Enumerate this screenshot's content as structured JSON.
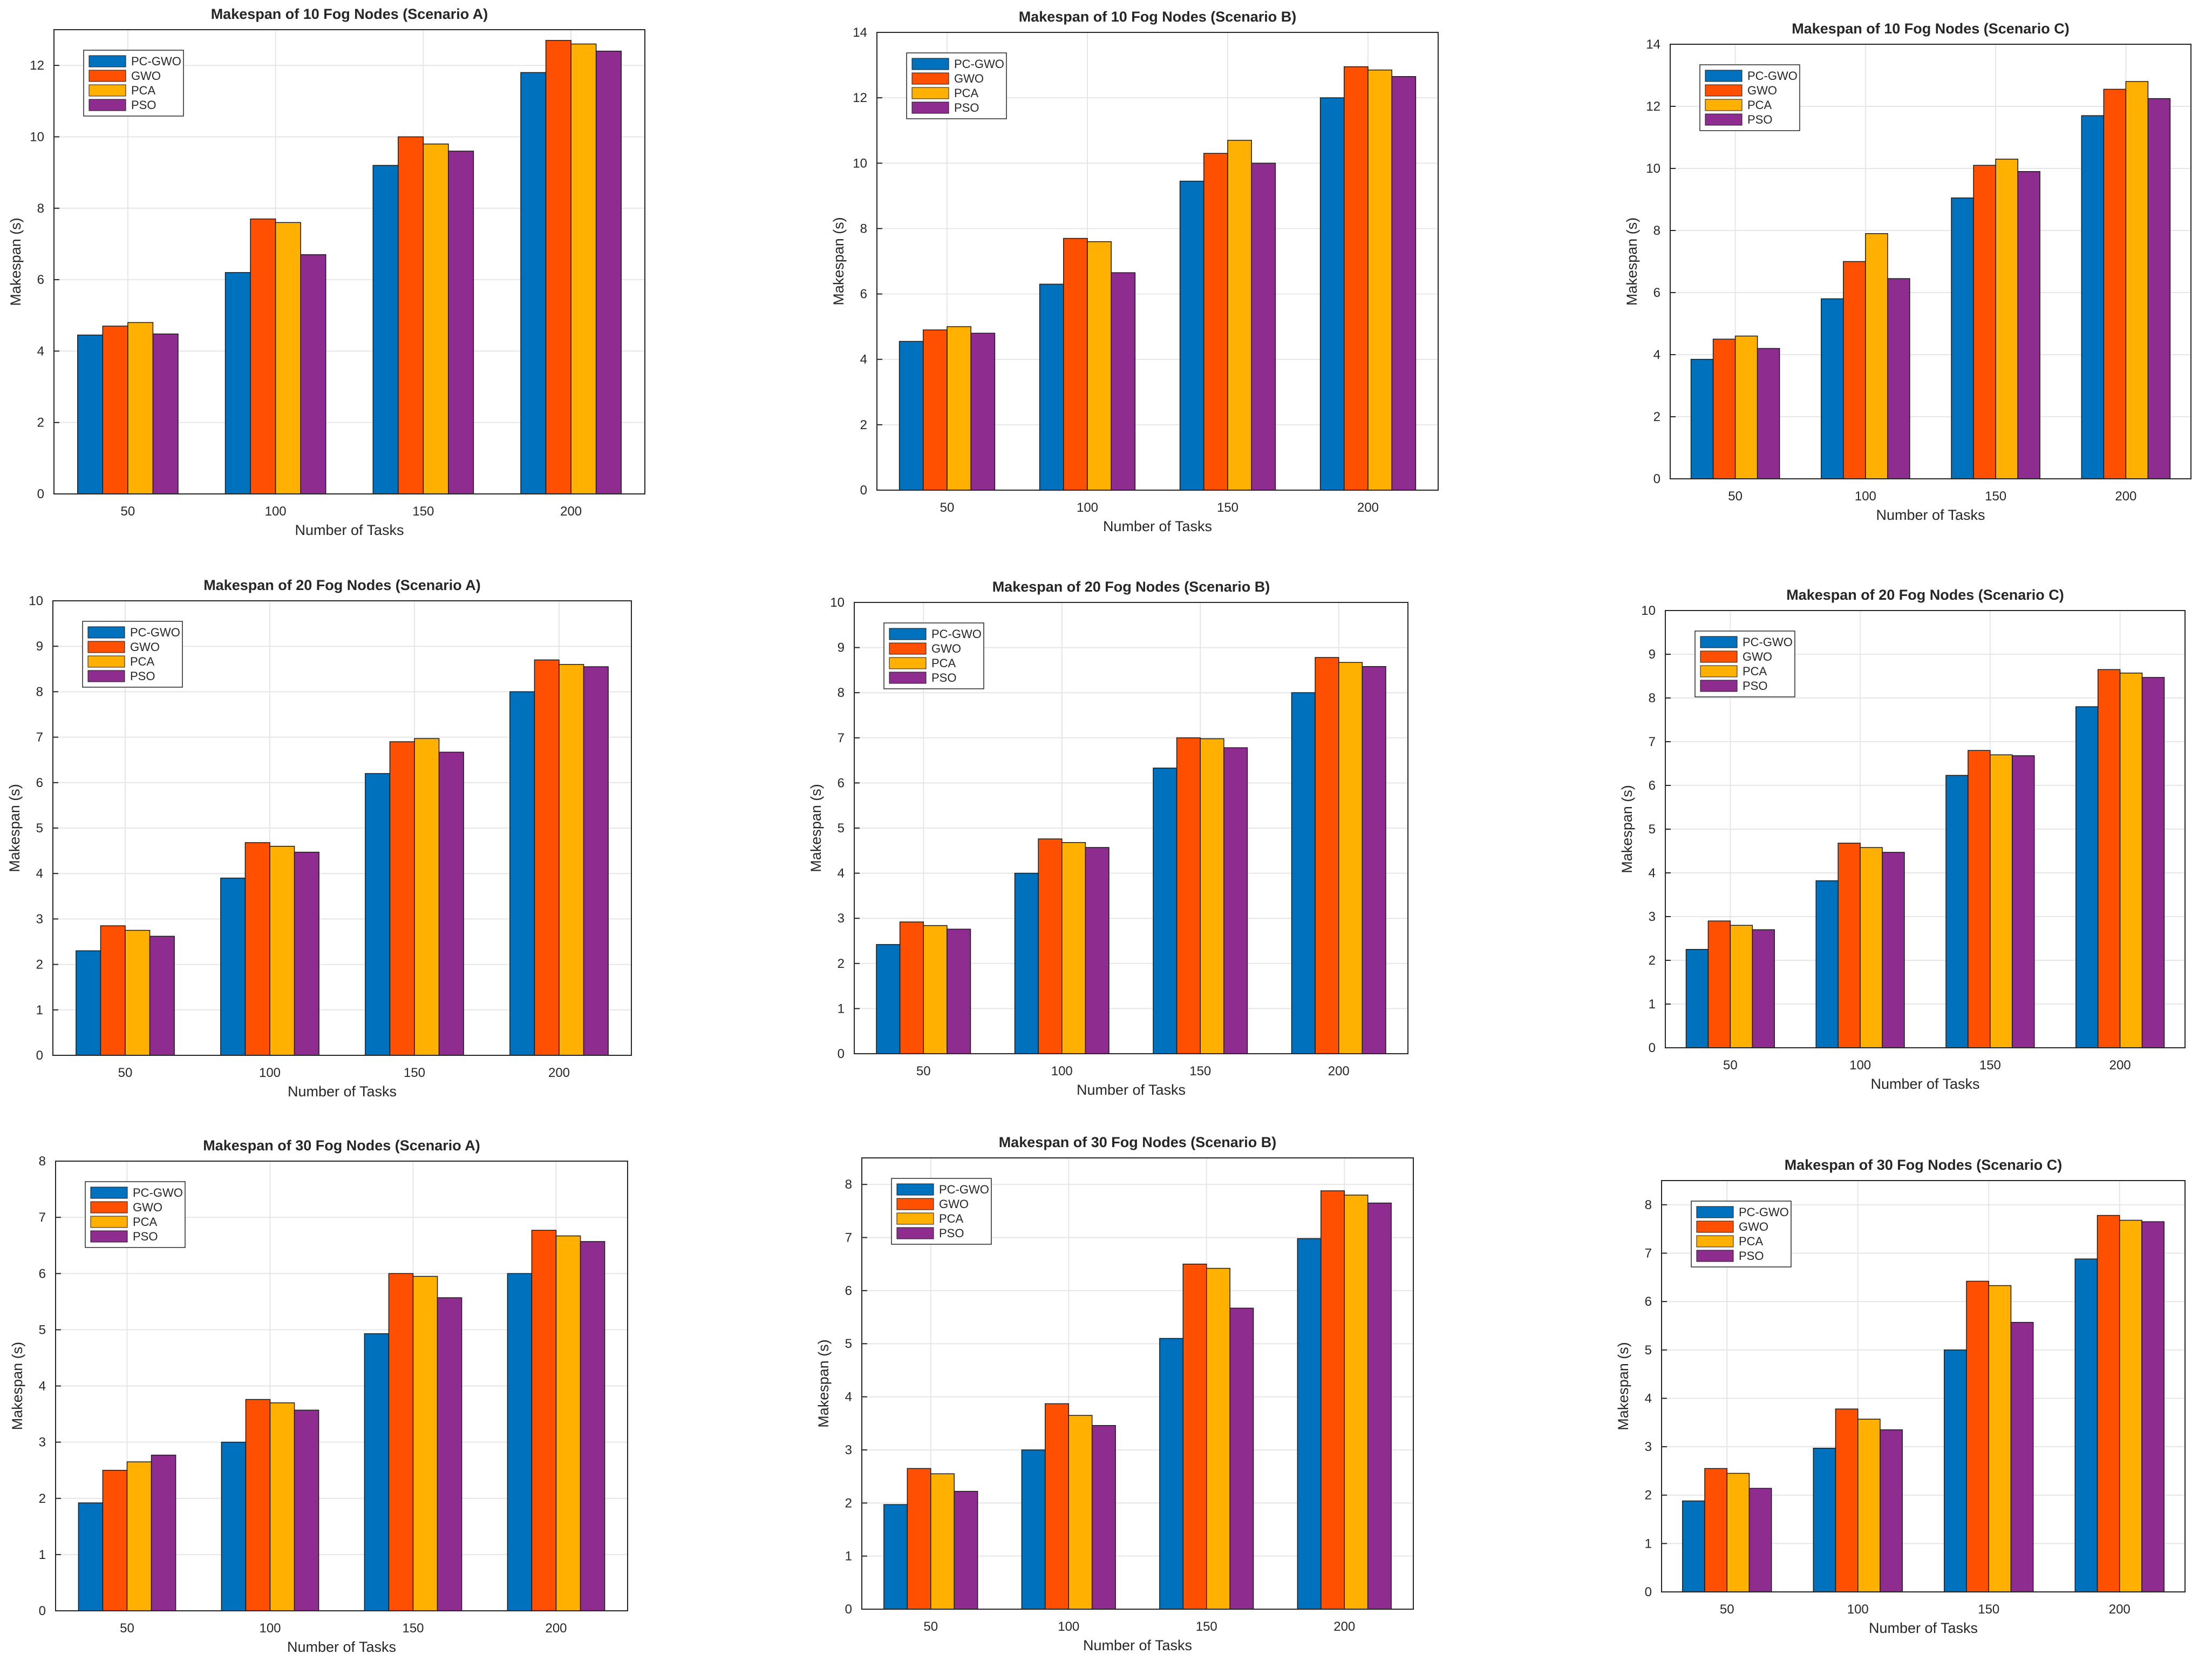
{
  "colors": {
    "series": [
      "#0072BD",
      "#FF4F00",
      "#FFB000",
      "#8E2C90"
    ],
    "grid": "#e6e6e6",
    "axis": "#262626"
  },
  "chart_data": [
    {
      "type": "bar",
      "title": "Makespan of 10 Fog Nodes  (Scenario A)",
      "xlabel": "Number of Tasks",
      "ylabel": "Makespan (s)",
      "categories": [
        "50",
        "100",
        "150",
        "200"
      ],
      "ylim": [
        0,
        13
      ],
      "yticks": [
        0,
        2,
        4,
        6,
        8,
        10,
        12
      ],
      "legend_position": "top-left",
      "series": [
        {
          "name": "PC-GWO",
          "values": [
            4.45,
            6.2,
            9.2,
            11.8
          ]
        },
        {
          "name": "GWO",
          "values": [
            4.7,
            7.7,
            10.0,
            12.7
          ]
        },
        {
          "name": "PCA",
          "values": [
            4.8,
            7.6,
            9.8,
            12.6
          ]
        },
        {
          "name": "PSO",
          "values": [
            4.48,
            6.7,
            9.6,
            12.4
          ]
        }
      ]
    },
    {
      "type": "bar",
      "title": "Makespan of 10 Fog Nodes  (Scenario B)",
      "xlabel": "Number of Tasks",
      "ylabel": "Makespan (s)",
      "categories": [
        "50",
        "100",
        "150",
        "200"
      ],
      "ylim": [
        0,
        14
      ],
      "yticks": [
        0,
        2,
        4,
        6,
        8,
        10,
        12,
        14
      ],
      "legend_position": "top-left",
      "series": [
        {
          "name": "PC-GWO",
          "values": [
            4.55,
            6.3,
            9.45,
            12.0
          ]
        },
        {
          "name": "GWO",
          "values": [
            4.9,
            7.7,
            10.3,
            12.95
          ]
        },
        {
          "name": "PCA",
          "values": [
            5.0,
            7.6,
            10.7,
            12.85
          ]
        },
        {
          "name": "PSO",
          "values": [
            4.8,
            6.65,
            10.0,
            12.65
          ]
        }
      ]
    },
    {
      "type": "bar",
      "title": "Makespan of 10 Fog Nodes  (Scenario C)",
      "xlabel": "Number of Tasks",
      "ylabel": "Makespan (s)",
      "categories": [
        "50",
        "100",
        "150",
        "200"
      ],
      "ylim": [
        0,
        14
      ],
      "yticks": [
        0,
        2,
        4,
        6,
        8,
        10,
        12,
        14
      ],
      "legend_position": "top-left",
      "series": [
        {
          "name": "PC-GWO",
          "values": [
            3.85,
            5.8,
            9.05,
            11.7
          ]
        },
        {
          "name": "GWO",
          "values": [
            4.5,
            7.0,
            10.1,
            12.55
          ]
        },
        {
          "name": "PCA",
          "values": [
            4.6,
            7.9,
            10.3,
            12.8
          ]
        },
        {
          "name": "PSO",
          "values": [
            4.2,
            6.45,
            9.9,
            12.25
          ]
        }
      ]
    },
    {
      "type": "bar",
      "title": "Makespan of 20 Fog Nodes  (Scenario A)",
      "xlabel": "Number of Tasks",
      "ylabel": "Makespan (s)",
      "categories": [
        "50",
        "100",
        "150",
        "200"
      ],
      "ylim": [
        0,
        10
      ],
      "yticks": [
        0,
        1,
        2,
        3,
        4,
        5,
        6,
        7,
        8,
        9,
        10
      ],
      "legend_position": "top-left",
      "series": [
        {
          "name": "PC-GWO",
          "values": [
            2.3,
            3.9,
            6.2,
            8.0
          ]
        },
        {
          "name": "GWO",
          "values": [
            2.85,
            4.68,
            6.9,
            8.7
          ]
        },
        {
          "name": "PCA",
          "values": [
            2.75,
            4.6,
            6.97,
            8.6
          ]
        },
        {
          "name": "PSO",
          "values": [
            2.62,
            4.47,
            6.67,
            8.55
          ]
        }
      ]
    },
    {
      "type": "bar",
      "title": "Makespan of 20 Fog Nodes  (Scenario B)",
      "xlabel": "Number of Tasks",
      "ylabel": "Makespan (s)",
      "categories": [
        "50",
        "100",
        "150",
        "200"
      ],
      "ylim": [
        0,
        10
      ],
      "yticks": [
        0,
        1,
        2,
        3,
        4,
        5,
        6,
        7,
        8,
        9,
        10
      ],
      "legend_position": "top-left",
      "series": [
        {
          "name": "PC-GWO",
          "values": [
            2.42,
            4.0,
            6.33,
            8.0
          ]
        },
        {
          "name": "GWO",
          "values": [
            2.92,
            4.76,
            7.0,
            8.78
          ]
        },
        {
          "name": "PCA",
          "values": [
            2.84,
            4.68,
            6.98,
            8.67
          ]
        },
        {
          "name": "PSO",
          "values": [
            2.76,
            4.57,
            6.78,
            8.58
          ]
        }
      ]
    },
    {
      "type": "bar",
      "title": "Makespan of 20 Fog Nodes  (Scenario C)",
      "xlabel": "Number of Tasks",
      "ylabel": "Makespan (s)",
      "categories": [
        "50",
        "100",
        "150",
        "200"
      ],
      "ylim": [
        0,
        10
      ],
      "yticks": [
        0,
        1,
        2,
        3,
        4,
        5,
        6,
        7,
        8,
        9,
        10
      ],
      "legend_position": "top-left",
      "series": [
        {
          "name": "PC-GWO",
          "values": [
            2.25,
            3.82,
            6.23,
            7.8
          ]
        },
        {
          "name": "GWO",
          "values": [
            2.9,
            4.68,
            6.8,
            8.65
          ]
        },
        {
          "name": "PCA",
          "values": [
            2.8,
            4.58,
            6.7,
            8.57
          ]
        },
        {
          "name": "PSO",
          "values": [
            2.7,
            4.47,
            6.68,
            8.47
          ]
        }
      ]
    },
    {
      "type": "bar",
      "title": "Makespan of 30 Fog Nodes  (Scenario A)",
      "xlabel": "Number of Tasks",
      "ylabel": "Makespan (s)",
      "categories": [
        "50",
        "100",
        "150",
        "200"
      ],
      "ylim": [
        0,
        8
      ],
      "yticks": [
        0,
        1,
        2,
        3,
        4,
        5,
        6,
        7,
        8
      ],
      "legend_position": "top-left",
      "series": [
        {
          "name": "PC-GWO",
          "values": [
            1.92,
            3.0,
            4.93,
            6.0
          ]
        },
        {
          "name": "GWO",
          "values": [
            2.5,
            3.76,
            6.0,
            6.77
          ]
        },
        {
          "name": "PCA",
          "values": [
            2.65,
            3.7,
            5.95,
            6.67
          ]
        },
        {
          "name": "PSO",
          "values": [
            2.77,
            3.57,
            5.57,
            6.57
          ]
        }
      ]
    },
    {
      "type": "bar",
      "title": "Makespan of 30 Fog Nodes  (Scenario B)",
      "xlabel": "Number of Tasks",
      "ylabel": "Makespan (s)",
      "categories": [
        "50",
        "100",
        "150",
        "200"
      ],
      "ylim": [
        0,
        8.5
      ],
      "yticks": [
        0,
        1,
        2,
        3,
        4,
        5,
        6,
        7,
        8
      ],
      "legend_position": "top-left",
      "series": [
        {
          "name": "PC-GWO",
          "values": [
            1.97,
            3.0,
            5.1,
            6.98
          ]
        },
        {
          "name": "GWO",
          "values": [
            2.65,
            3.87,
            6.5,
            7.88
          ]
        },
        {
          "name": "PCA",
          "values": [
            2.55,
            3.65,
            6.42,
            7.8
          ]
        },
        {
          "name": "PSO",
          "values": [
            2.22,
            3.46,
            5.67,
            7.65
          ]
        }
      ]
    },
    {
      "type": "bar",
      "title": "Makespan of 30 Fog Nodes  (Scenario C)",
      "xlabel": "Number of Tasks",
      "ylabel": "Makespan (s)",
      "categories": [
        "50",
        "100",
        "150",
        "200"
      ],
      "ylim": [
        0,
        8.5
      ],
      "yticks": [
        0,
        1,
        2,
        3,
        4,
        5,
        6,
        7,
        8
      ],
      "legend_position": "top-left",
      "series": [
        {
          "name": "PC-GWO",
          "values": [
            1.88,
            2.97,
            5.0,
            6.88
          ]
        },
        {
          "name": "GWO",
          "values": [
            2.55,
            3.78,
            6.42,
            7.78
          ]
        },
        {
          "name": "PCA",
          "values": [
            2.45,
            3.57,
            6.33,
            7.68
          ]
        },
        {
          "name": "PSO",
          "values": [
            2.14,
            3.35,
            5.57,
            7.65
          ]
        }
      ]
    }
  ]
}
